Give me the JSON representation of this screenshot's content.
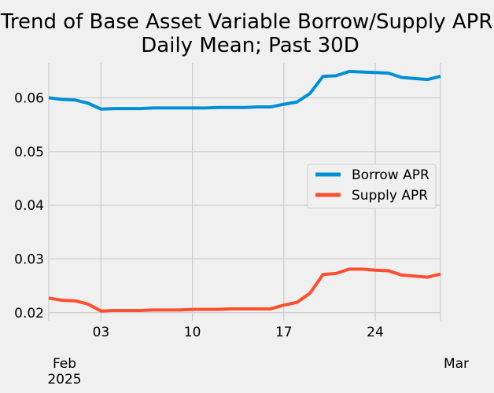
{
  "chart_data": {
    "type": "line",
    "title": "Trend of Base Asset Variable Borrow/Supply APR;",
    "subtitle": "Daily Mean; Past 30D",
    "xlabel": "",
    "ylabel": "",
    "grid": true,
    "legend_position": "center-right",
    "ylim": [
      0.0185,
      0.0665
    ],
    "yticks": [
      {
        "value": 0.02,
        "label": "0.02"
      },
      {
        "value": 0.03,
        "label": "0.03"
      },
      {
        "value": 0.04,
        "label": "0.04"
      },
      {
        "value": 0.05,
        "label": "0.05"
      },
      {
        "value": 0.06,
        "label": "0.06"
      }
    ],
    "xlim": [
      "2025-01-30",
      "2025-03-01"
    ],
    "xticks_minor": [
      {
        "date": "2025-02-03",
        "label": "03"
      },
      {
        "date": "2025-02-10",
        "label": "10"
      },
      {
        "date": "2025-02-17",
        "label": "17"
      },
      {
        "date": "2025-02-24",
        "label": "24"
      }
    ],
    "xticks_major": [
      {
        "date": "2025-01-30",
        "label": "Feb",
        "sublabel": "2025"
      },
      {
        "date": "2025-03-01",
        "label": "Mar",
        "sublabel": ""
      }
    ],
    "x": [
      "2025-01-30",
      "2025-01-31",
      "2025-02-01",
      "2025-02-02",
      "2025-02-03",
      "2025-02-04",
      "2025-02-05",
      "2025-02-06",
      "2025-02-07",
      "2025-02-08",
      "2025-02-09",
      "2025-02-10",
      "2025-02-11",
      "2025-02-12",
      "2025-02-13",
      "2025-02-14",
      "2025-02-15",
      "2025-02-16",
      "2025-02-17",
      "2025-02-18",
      "2025-02-19",
      "2025-02-20",
      "2025-02-21",
      "2025-02-22",
      "2025-02-23",
      "2025-02-24",
      "2025-02-25",
      "2025-02-26",
      "2025-02-27",
      "2025-02-28",
      "2025-03-01"
    ],
    "series": [
      {
        "name": "Borrow APR",
        "color": "#008fd5",
        "values": [
          0.06,
          0.0597,
          0.0596,
          0.059,
          0.0579,
          0.058,
          0.058,
          0.058,
          0.0581,
          0.0581,
          0.0581,
          0.0581,
          0.0581,
          0.0582,
          0.0582,
          0.0582,
          0.0583,
          0.0583,
          0.0588,
          0.0592,
          0.0608,
          0.064,
          0.0641,
          0.0649,
          0.0648,
          0.0647,
          0.0646,
          0.0638,
          0.0636,
          0.0634,
          0.064
        ]
      },
      {
        "name": "Supply APR",
        "color": "#fc4f30",
        "values": [
          0.0227,
          0.0223,
          0.0222,
          0.0216,
          0.0203,
          0.0204,
          0.0204,
          0.0204,
          0.0205,
          0.0205,
          0.0205,
          0.0206,
          0.0206,
          0.0206,
          0.0207,
          0.0207,
          0.0207,
          0.0207,
          0.0214,
          0.0219,
          0.0236,
          0.0271,
          0.0273,
          0.0281,
          0.0281,
          0.0279,
          0.0278,
          0.027,
          0.0268,
          0.0266,
          0.0272
        ]
      }
    ]
  }
}
